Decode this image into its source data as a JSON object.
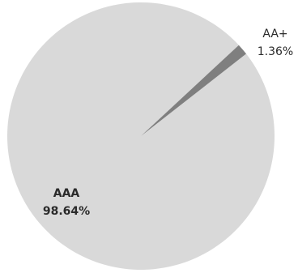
{
  "chart_data": {
    "type": "pie",
    "slices": [
      {
        "label": "AAA",
        "percent_label": "98.64%",
        "value": 98.64,
        "color": "#d9d9d9"
      },
      {
        "label": "AA+",
        "percent_label": "1.36%",
        "value": 1.36,
        "color": "#7f7f7f"
      }
    ]
  }
}
